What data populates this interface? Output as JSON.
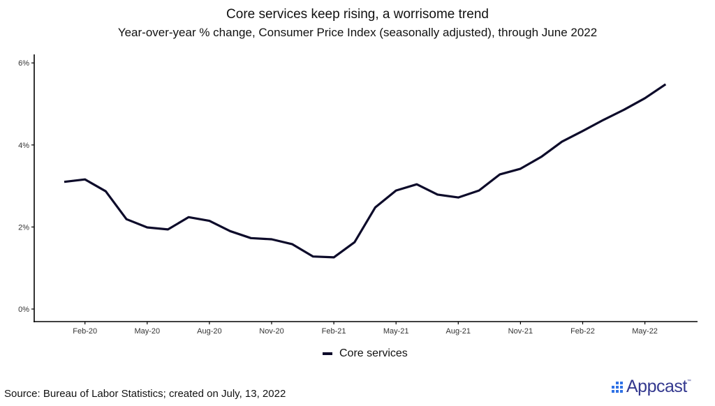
{
  "chart_data": {
    "type": "line",
    "title": "Core services keep rising, a worrisome trend",
    "subtitle": "Year-over-year % change, Consumer Price Index (seasonally adjusted), through June 2022",
    "xlabel": "",
    "ylabel": "",
    "ylim": [
      0,
      6
    ],
    "yticks": [
      0,
      2,
      4,
      6
    ],
    "ytick_labels": [
      "0%",
      "2%",
      "4%",
      "6%"
    ],
    "xtick_labels": [
      "Feb-20",
      "May-20",
      "Aug-20",
      "Nov-20",
      "Feb-21",
      "May-21",
      "Aug-21",
      "Nov-21",
      "Feb-22",
      "May-22"
    ],
    "xtick_index": [
      1,
      4,
      7,
      10,
      13,
      16,
      19,
      22,
      25,
      28
    ],
    "x": [
      "Jan-20",
      "Feb-20",
      "Mar-20",
      "Apr-20",
      "May-20",
      "Jun-20",
      "Jul-20",
      "Aug-20",
      "Sep-20",
      "Oct-20",
      "Nov-20",
      "Dec-20",
      "Jan-21",
      "Feb-21",
      "Mar-21",
      "Apr-21",
      "May-21",
      "Jun-21",
      "Jul-21",
      "Aug-21",
      "Sep-21",
      "Oct-21",
      "Nov-21",
      "Dec-21",
      "Jan-22",
      "Feb-22",
      "Mar-22",
      "Apr-22",
      "May-22",
      "Jun-22"
    ],
    "series": [
      {
        "name": "Core services",
        "color": "#0d0b2a",
        "values": [
          3.1,
          3.16,
          2.87,
          2.19,
          1.99,
          1.94,
          2.24,
          2.15,
          1.9,
          1.73,
          1.7,
          1.58,
          1.28,
          1.26,
          1.63,
          2.48,
          2.89,
          3.04,
          2.79,
          2.72,
          2.89,
          3.28,
          3.42,
          3.71,
          4.08,
          4.34,
          4.61,
          4.86,
          5.14,
          5.48
        ]
      }
    ],
    "grid": false,
    "legend_position": "bottom"
  },
  "legend": {
    "label": "Core services"
  },
  "footer": {
    "source": "Source: Bureau of Labor Statistics; created on July, 13, 2022",
    "logo_text": "Appcast",
    "logo_tm": "™"
  }
}
